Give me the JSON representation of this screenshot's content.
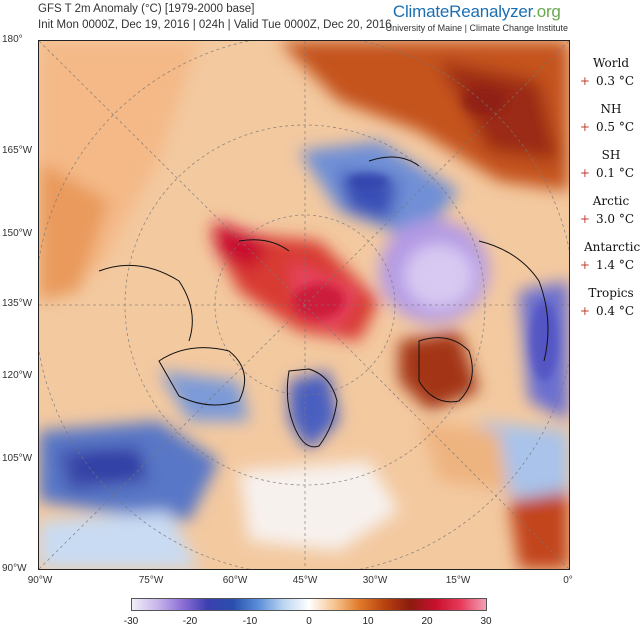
{
  "header": {
    "title": "GFS T 2m Anomaly (°C) [1979-2000 base]",
    "subtitle": "Init Mon 0000Z, Dec 19, 2016 | 024h | Valid Tue 0000Z, Dec 20, 2016"
  },
  "brand": {
    "logo_part1": "ClimateReanalyzer",
    "logo_part2": ".org",
    "tagline": "University of Maine | Climate Change Institute"
  },
  "map": {
    "lat_labels": [
      "180°",
      "165°W",
      "150°W",
      "135°W",
      "120°W",
      "105°W",
      "90°W"
    ],
    "lon_labels": [
      "90°W",
      "75°W",
      "60°W",
      "45°W",
      "30°W",
      "15°W",
      "0°"
    ]
  },
  "stats": [
    {
      "name": "World",
      "sign": "+",
      "value": "0.3 °C"
    },
    {
      "name": "NH",
      "sign": "+",
      "value": "0.5 °C"
    },
    {
      "name": "SH",
      "sign": "+",
      "value": "0.1 °C"
    },
    {
      "name": "Arctic",
      "sign": "+",
      "value": "3.0 °C"
    },
    {
      "name": "Antarctic",
      "sign": "+",
      "value": "1.4 °C"
    },
    {
      "name": "Tropics",
      "sign": "+",
      "value": "0.4 °C"
    }
  ],
  "colorbar": {
    "ticks": [
      "-30",
      "-20",
      "-10",
      "0",
      "10",
      "20",
      "30"
    ],
    "range": [
      -30,
      30
    ],
    "colors": [
      "#f2eef8",
      "#c7b6ea",
      "#8d6fd6",
      "#3b3fb0",
      "#2a4fae",
      "#5b8fd8",
      "#bcd6f2",
      "#ffffff",
      "#f6c590",
      "#e07a2a",
      "#b8420f",
      "#8b1b0f",
      "#c8102e",
      "#e83a5a",
      "#f0a0b4"
    ]
  }
}
